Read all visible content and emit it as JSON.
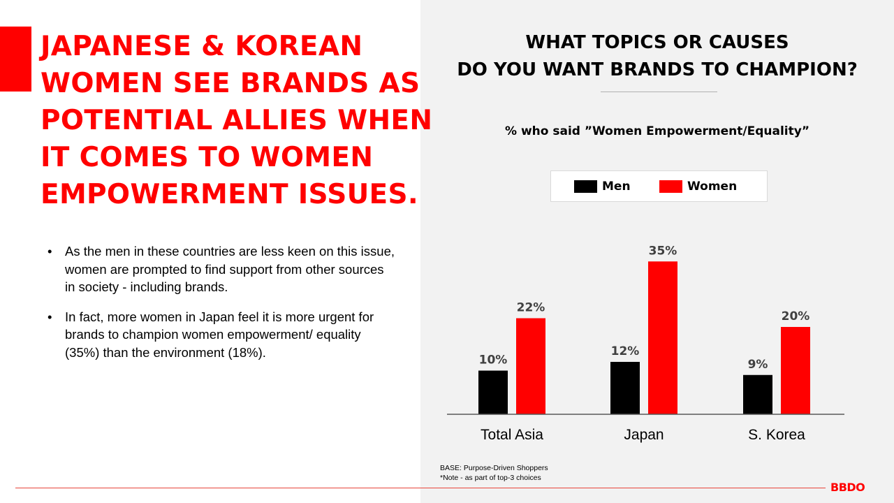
{
  "headline": {
    "lines": [
      "JAPANESE & KOREAN",
      "WOMEN SEE BRANDS AS",
      "POTENTIAL ALLIES WHEN",
      "IT COMES TO WOMEN",
      "EMPOWERMENT ISSUES."
    ]
  },
  "bullets": [
    "As the men in these countries are less keen  on this issue, women are prompted to find support from other sources in society -  including brands.",
    "In fact, more women in Japan feel it is more urgent for brands to champion women empowerment/ equality (35%) than the environment (18%)."
  ],
  "chart_title": {
    "line1": "WHAT TOPICS OR CAUSES",
    "line2": "DO YOU WANT BRANDS TO CHAMPION?"
  },
  "colors": {
    "accent": "#ff0000",
    "men": "#000000",
    "women": "#ff0000",
    "panel": "#f2f2f2"
  },
  "chart_data": {
    "type": "bar",
    "title": "WHAT TOPICS OR CAUSES DO YOU WANT BRANDS TO CHAMPION?",
    "subtitle": "% who said ”Women Empowerment/Equality”",
    "categories": [
      "Total Asia",
      "Japan",
      "S. Korea"
    ],
    "series": [
      {
        "name": "Men",
        "values": [
          10,
          12,
          9
        ],
        "labels": [
          "10%",
          "12%",
          "9%"
        ],
        "color": "#000000"
      },
      {
        "name": "Women",
        "values": [
          22,
          35,
          20
        ],
        "labels": [
          "22%",
          "35%",
          "20%"
        ],
        "color": "#ff0000"
      }
    ],
    "ylim": [
      0,
      40
    ],
    "grid": false,
    "legend": "top",
    "xlabel": "",
    "ylabel": ""
  },
  "notes": {
    "base": "BASE: Purpose-Driven Shoppers",
    "note": "*Note - as part of top-3 choices"
  },
  "logo": "BBDO"
}
